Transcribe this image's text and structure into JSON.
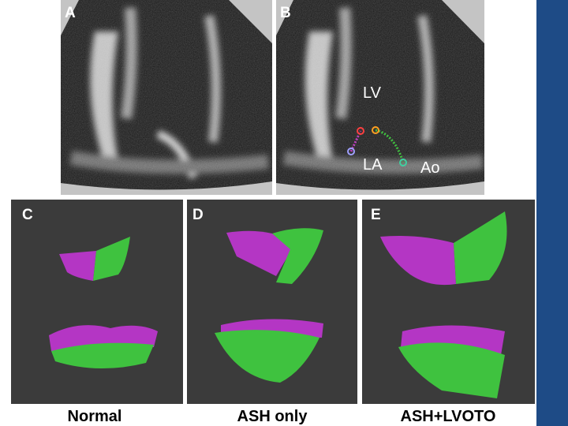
{
  "panels": [
    {
      "label": "A"
    },
    {
      "label": "B",
      "annotations": [
        "LV",
        "LA",
        "Ao"
      ]
    },
    {
      "label": "C",
      "caption": "Normal"
    },
    {
      "label": "D",
      "caption": "ASH only"
    },
    {
      "label": "E",
      "caption": "ASH+LVOTO"
    }
  ]
}
